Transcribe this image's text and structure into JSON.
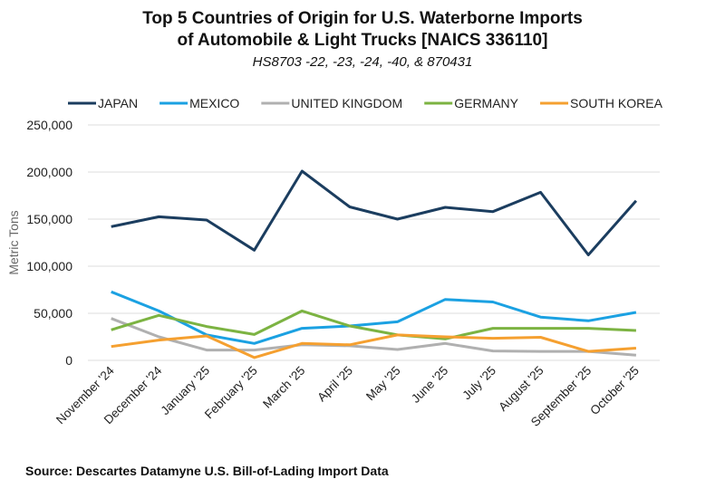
{
  "chart_data": {
    "type": "line",
    "title": [
      "Top 5 Countries of Origin for U.S. Waterborne Imports",
      "of Automobile & Light Trucks [NAICS 336110]"
    ],
    "subtitle": "HS8703 -22, -23, -24, -40, & 870431",
    "xlabel": "",
    "ylabel": "Metric Tons",
    "ylim": [
      0,
      250000
    ],
    "yticks": [
      0,
      50000,
      100000,
      150000,
      200000,
      250000
    ],
    "ytick_labels": [
      "0",
      "50,000",
      "100,000",
      "150,000",
      "200,000",
      "250,000"
    ],
    "grid": true,
    "legend_position": "top",
    "categories": [
      "November '24",
      "December '24",
      "January '25",
      "February '25",
      "March '25",
      "April '25",
      "May '25",
      "June '25",
      "July '25",
      "August '25",
      "September '25",
      "October '25"
    ],
    "series": [
      {
        "name": "JAPAN",
        "color": "#1b3d5f",
        "values": [
          142000,
          152500,
          149000,
          117000,
          201000,
          163000,
          150000,
          162500,
          158000,
          178500,
          112000,
          169500
        ]
      },
      {
        "name": "MEXICO",
        "color": "#1ba1e2",
        "values": [
          72800,
          52500,
          27000,
          18000,
          34000,
          36500,
          41000,
          64700,
          62000,
          46000,
          42000,
          51000
        ]
      },
      {
        "name": "UNITED KINGDOM",
        "color": "#b0b0b0",
        "values": [
          44500,
          25000,
          11000,
          11000,
          16500,
          15500,
          11500,
          18000,
          10000,
          9500,
          9500,
          5500
        ]
      },
      {
        "name": "GERMANY",
        "color": "#7cb342",
        "values": [
          32400,
          47800,
          36000,
          27500,
          52500,
          36500,
          27000,
          22800,
          34000,
          34000,
          34000,
          31700
        ]
      },
      {
        "name": "SOUTH KOREA",
        "color": "#f5a030",
        "values": [
          14700,
          21500,
          26000,
          3000,
          18000,
          16500,
          27000,
          25000,
          23500,
          24500,
          9500,
          13000
        ]
      }
    ]
  },
  "source": "Source: Descartes Datamyne U.S. Bill-of-Lading Import Data"
}
